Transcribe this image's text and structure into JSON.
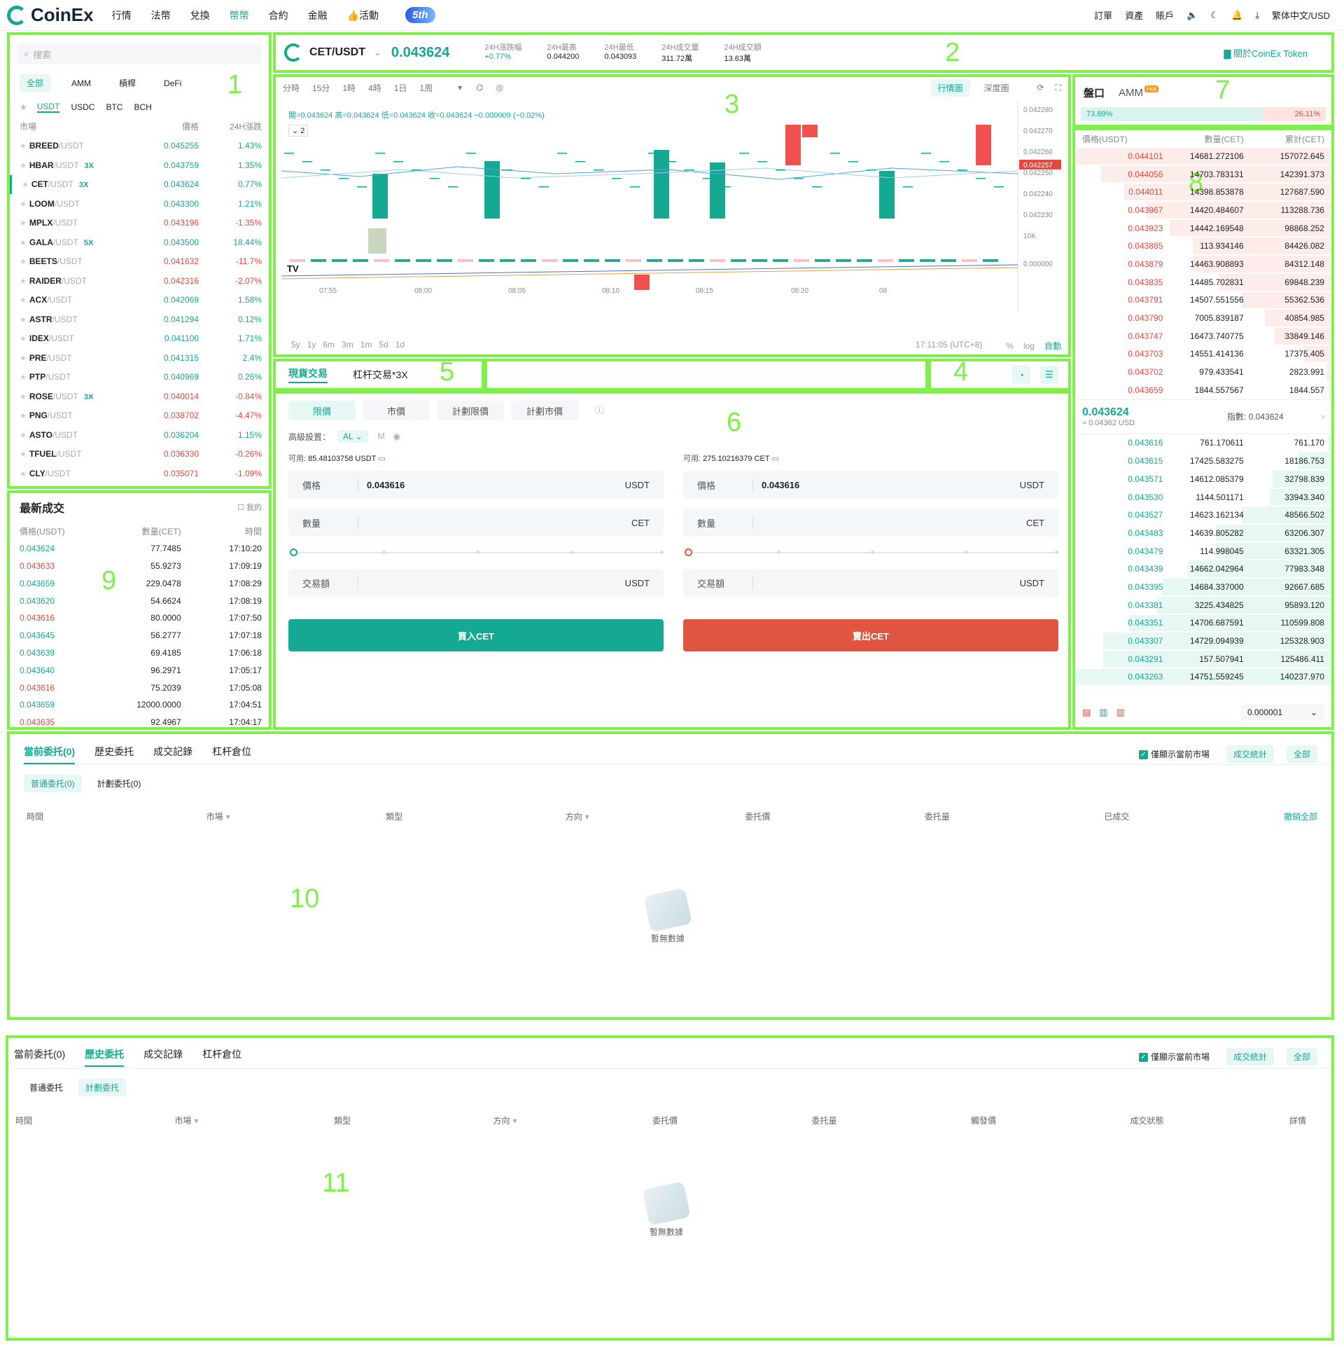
{
  "nav": {
    "logo": "CoinEx",
    "items": [
      "行情",
      "法幣",
      "兌換",
      "幣幣",
      "合約",
      "金融",
      "👍活動"
    ],
    "active": 3,
    "badge": "5th",
    "right": [
      "訂單",
      "資產",
      "賬戶",
      "繁体中文/USD"
    ]
  },
  "markets": {
    "search_placeholder": "搜索",
    "tabs": [
      "全部",
      "AMM",
      "槓桿",
      "DeFi"
    ],
    "quotes": [
      "USDT",
      "USDC",
      "BTC",
      "BCH"
    ],
    "headers": [
      "市場",
      "價格",
      "24H漲跌"
    ],
    "rows": [
      {
        "base": "BREED",
        "quote": "/USDT",
        "lev": "",
        "price": "0.045255",
        "change": "1.43%",
        "dir": "up"
      },
      {
        "base": "HBAR",
        "quote": "/USDT",
        "lev": "3X",
        "price": "0.043759",
        "change": "1.35%",
        "dir": "up"
      },
      {
        "base": "CET",
        "quote": "/USDT",
        "lev": "3X",
        "price": "0.043624",
        "change": "0.77%",
        "dir": "up"
      },
      {
        "base": "LOOM",
        "quote": "/USDT",
        "lev": "",
        "price": "0.043300",
        "change": "1.21%",
        "dir": "up"
      },
      {
        "base": "MPLX",
        "quote": "/USDT",
        "lev": "",
        "price": "0.043196",
        "change": "-1.35%",
        "dir": "down"
      },
      {
        "base": "GALA",
        "quote": "/USDT",
        "lev": "5X",
        "price": "0.043500",
        "change": "18.44%",
        "dir": "up"
      },
      {
        "base": "BEETS",
        "quote": "/USDT",
        "lev": "",
        "price": "0.041632",
        "change": "-11.7%",
        "dir": "down"
      },
      {
        "base": "RAIDER",
        "quote": "/USDT",
        "lev": "",
        "price": "0.042316",
        "change": "-2.07%",
        "dir": "down"
      },
      {
        "base": "ACX",
        "quote": "/USDT",
        "lev": "",
        "price": "0.042069",
        "change": "1.58%",
        "dir": "up"
      },
      {
        "base": "ASTR",
        "quote": "/USDT",
        "lev": "",
        "price": "0.041294",
        "change": "0.12%",
        "dir": "up"
      },
      {
        "base": "IDEX",
        "quote": "/USDT",
        "lev": "",
        "price": "0.041100",
        "change": "1.71%",
        "dir": "up"
      },
      {
        "base": "PRE",
        "quote": "/USDT",
        "lev": "",
        "price": "0.041315",
        "change": "2.4%",
        "dir": "up"
      },
      {
        "base": "PTP",
        "quote": "/USDT",
        "lev": "",
        "price": "0.040969",
        "change": "0.26%",
        "dir": "up"
      },
      {
        "base": "ROSE",
        "quote": "/USDT",
        "lev": "3X",
        "price": "0.040014",
        "change": "-0.84%",
        "dir": "down"
      },
      {
        "base": "PNG",
        "quote": "/USDT",
        "lev": "",
        "price": "0.038702",
        "change": "-4.47%",
        "dir": "down"
      },
      {
        "base": "ASTO",
        "quote": "/USDT",
        "lev": "",
        "price": "0.036204",
        "change": "1.15%",
        "dir": "up"
      },
      {
        "base": "TFUEL",
        "quote": "/USDT",
        "lev": "",
        "price": "0.036330",
        "change": "-0.26%",
        "dir": "down"
      },
      {
        "base": "CLY",
        "quote": "/USDT",
        "lev": "",
        "price": "0.035071",
        "change": "-1.09%",
        "dir": "down"
      }
    ]
  },
  "ticker": {
    "pair": "CET/USDT",
    "price": "0.043624",
    "stats": [
      {
        "label": "24H漲跌幅",
        "value": "+0.77%",
        "green": true
      },
      {
        "label": "24H最高",
        "value": "0.044200"
      },
      {
        "label": "24H最低",
        "value": "0.043093"
      },
      {
        "label": "24H成交量",
        "value": "311.72萬"
      },
      {
        "label": "24H成交額",
        "value": "13.63萬"
      }
    ],
    "token_link": "關於CoinEx Token"
  },
  "chart": {
    "intervals": [
      "分時",
      "15分",
      "1時",
      "4時",
      "1日",
      "1周"
    ],
    "views": [
      "行情圖",
      "深度圖"
    ],
    "ohlc_text": "開=0.043624  高=0.043624  低=0.043624  收=0.043624  −0.000009 (−0.02%)",
    "indicator_count": "2",
    "y_ticks": [
      "0.042280",
      "0.042270",
      "0.042260",
      "0.042250",
      "0.042240",
      "0.042230"
    ],
    "price_tag": "0.042257",
    "vol_tick": "10K",
    "macd_tick": "0.000000",
    "x_ticks": [
      "07:55",
      "08:00",
      "08:05",
      "08:10",
      "08:15",
      "08:20",
      "08"
    ],
    "ranges": [
      "5y",
      "1y",
      "6m",
      "3m",
      "1m",
      "5d",
      "1d"
    ],
    "time": "17:11:05 (UTC+8)",
    "opts": [
      "%",
      "log",
      "自動"
    ]
  },
  "trade_tabs": {
    "spot": "現貨交易",
    "margin": "杠杆交易*3X"
  },
  "order_form": {
    "types": [
      "限價",
      "市價",
      "計劃限價",
      "計劃市價"
    ],
    "advanced": "高級設置：",
    "al": "AL",
    "m": "M",
    "buy": {
      "avail_label": "可用:",
      "avail": "85.48103758 USDT",
      "price": "0.043616",
      "button": "買入CET"
    },
    "sell": {
      "avail_label": "可用:",
      "avail": "275.10216379 CET",
      "price": "0.043616",
      "button": "賣出CET"
    },
    "labels": {
      "price": "價格",
      "amount": "數量",
      "total": "交易額"
    },
    "units": {
      "price": "USDT",
      "amount": "CET",
      "total": "USDT"
    }
  },
  "orderbook": {
    "tabs": [
      "盤口",
      "AMM"
    ],
    "hot": "Hot",
    "buy_pct": "73.89%",
    "sell_pct": "26.11%",
    "headers": [
      "價格(USDT)",
      "數量(CET)",
      "累計(CET)"
    ],
    "asks": [
      [
        "0.044101",
        "14681.272106",
        "157072.645"
      ],
      [
        "0.044056",
        "14703.783131",
        "142391.373"
      ],
      [
        "0.044011",
        "14398.853878",
        "127687.590"
      ],
      [
        "0.043967",
        "14420.484607",
        "113288.736"
      ],
      [
        "0.043923",
        "14442.169548",
        "98868.252"
      ],
      [
        "0.043885",
        "113.934146",
        "84426.082"
      ],
      [
        "0.043879",
        "14463.908893",
        "84312.148"
      ],
      [
        "0.043835",
        "14485.702831",
        "69848.239"
      ],
      [
        "0.043791",
        "14507.551556",
        "55362.536"
      ],
      [
        "0.043790",
        "7005.839187",
        "40854.985"
      ],
      [
        "0.043747",
        "16473.740775",
        "33849.146"
      ],
      [
        "0.043703",
        "14551.414136",
        "17375.405"
      ],
      [
        "0.043702",
        "979.433541",
        "2823.991"
      ],
      [
        "0.043659",
        "1844.557567",
        "1844.557"
      ]
    ],
    "ask_depth": [
      1.0,
      0.9,
      0.81,
      0.72,
      0.63,
      0.54,
      0.54,
      0.44,
      0.35,
      0.26,
      0.22,
      0.11,
      0.02,
      0.01
    ],
    "last": "0.043624",
    "last_usd": "≈ 0.04362 USD",
    "index_label": "指數:",
    "index": "0.043624",
    "bids": [
      [
        "0.043616",
        "761.170611",
        "761.170"
      ],
      [
        "0.043615",
        "17425.583275",
        "18186.753"
      ],
      [
        "0.043571",
        "14612.085379",
        "32798.839"
      ],
      [
        "0.043530",
        "1144.501171",
        "33943.340"
      ],
      [
        "0.043527",
        "14623.162134",
        "48566.502"
      ],
      [
        "0.043483",
        "14639.805282",
        "63206.307"
      ],
      [
        "0.043479",
        "114.998045",
        "63321.305"
      ],
      [
        "0.043439",
        "14662.042964",
        "77983.348"
      ],
      [
        "0.043395",
        "14684.337000",
        "92667.685"
      ],
      [
        "0.043381",
        "3225.434825",
        "95893.120"
      ],
      [
        "0.043351",
        "14706.687591",
        "110599.808"
      ],
      [
        "0.043307",
        "14729.094939",
        "125328.903"
      ],
      [
        "0.043291",
        "157.507941",
        "125486.411"
      ],
      [
        "0.043263",
        "14751.559245",
        "140237.970"
      ]
    ],
    "bid_depth": [
      0.01,
      0.13,
      0.23,
      0.24,
      0.35,
      0.45,
      0.45,
      0.56,
      0.66,
      0.68,
      0.79,
      0.89,
      0.89,
      1.0
    ],
    "precision": "0.000001"
  },
  "trades": {
    "title": "最新成交",
    "mine": "我的",
    "headers": [
      "價格(USDT)",
      "數量(CET)",
      "時間"
    ],
    "rows": [
      [
        "0.043624",
        "77.7485",
        "17:10:20",
        "up"
      ],
      [
        "0.043633",
        "55.9273",
        "17:09:19",
        "down"
      ],
      [
        "0.043659",
        "229.0478",
        "17:08:29",
        "up"
      ],
      [
        "0.043620",
        "54.6624",
        "17:08:19",
        "up"
      ],
      [
        "0.043616",
        "80.0000",
        "17:07:50",
        "down"
      ],
      [
        "0.043645",
        "56.2777",
        "17:07:18",
        "up"
      ],
      [
        "0.043639",
        "69.4185",
        "17:06:18",
        "up"
      ],
      [
        "0.043640",
        "96.2971",
        "17:05:17",
        "up"
      ],
      [
        "0.043616",
        "75.2039",
        "17:05:08",
        "down"
      ],
      [
        "0.043659",
        "12000.0000",
        "17:04:51",
        "up"
      ],
      [
        "0.043635",
        "92.4967",
        "17:04:17",
        "down"
      ]
    ]
  },
  "orders1": {
    "tabs": [
      "當前委托(0)",
      "歷史委托",
      "成交記錄",
      "杠杆倉位"
    ],
    "show_current": "僅顯示當前市場",
    "stats": "成交統計",
    "all": "全部",
    "sub_tabs": [
      "普通委托(0)",
      "計劃委托(0)"
    ],
    "columns": [
      "時間",
      "市場",
      "類型",
      "方向",
      "委托價",
      "委托量",
      "已成交"
    ],
    "cancel_all": "撤銷全部",
    "empty": "暫無數據"
  },
  "orders2": {
    "tabs": [
      "當前委托(0)",
      "歷史委托",
      "成交記錄",
      "杠杆倉位"
    ],
    "show_current": "僅顯示當前市場",
    "stats": "成交統計",
    "all": "全部",
    "sub_tabs": [
      "普通委托",
      "計劃委托"
    ],
    "columns": [
      "時間",
      "市場",
      "類型",
      "方向",
      "委托價",
      "委托量",
      "觸發價",
      "成交狀態",
      "詳情"
    ],
    "empty": "暫無數據"
  },
  "annotations": [
    "1",
    "2",
    "3",
    "4",
    "5",
    "6",
    "7",
    "8",
    "9",
    "10",
    "11"
  ],
  "colors": {
    "green": "#15a892",
    "red": "#e5483d",
    "outline": "#7ef04a"
  }
}
